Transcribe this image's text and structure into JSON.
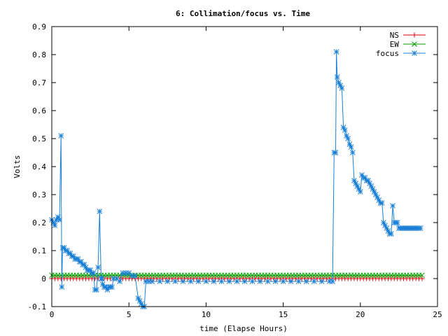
{
  "chart_data": {
    "type": "line",
    "title": "6: Collimation/focus vs. Time",
    "xlabel": "time (Elapse Hours)",
    "ylabel": "Volts",
    "xlim": [
      0,
      25
    ],
    "ylim": [
      -0.1,
      0.9
    ],
    "x_ticks": [
      0,
      5,
      10,
      15,
      20,
      25
    ],
    "y_ticks": [
      -0.1,
      0,
      0.1,
      0.2,
      0.3,
      0.4,
      0.5,
      0.6,
      0.7,
      0.8,
      0.9
    ],
    "x_tick_labels": [
      "0",
      "5",
      "10",
      "15",
      "20",
      "25"
    ],
    "y_tick_labels": [
      "-0.1",
      "0",
      "0.1",
      "0.2",
      "0.3",
      "0.4",
      "0.5",
      "0.6",
      "0.7",
      "0.8",
      "0.9"
    ],
    "grid": false,
    "legend_position": "top-right",
    "series": [
      {
        "name": "NS",
        "color": "#e00000",
        "marker": "plus",
        "x_range": [
          0,
          24
        ],
        "step": 0.2,
        "value": 0.0
      },
      {
        "name": "EW",
        "color": "#00a000",
        "marker": "cross",
        "x_range": [
          0,
          24
        ],
        "step": 0.2,
        "value": 0.012
      },
      {
        "name": "focus",
        "color": "#1a7fd6",
        "marker": "star",
        "x": [
          0.0,
          0.1,
          0.2,
          0.3,
          0.4,
          0.5,
          0.6,
          0.65,
          0.7,
          0.8,
          0.9,
          1.0,
          1.1,
          1.2,
          1.3,
          1.4,
          1.5,
          1.6,
          1.7,
          1.8,
          1.9,
          2.0,
          2.1,
          2.2,
          2.3,
          2.4,
          2.5,
          2.6,
          2.7,
          2.8,
          2.9,
          3.0,
          3.1,
          3.2,
          3.25,
          3.3,
          3.4,
          3.5,
          3.6,
          3.7,
          3.8,
          3.9,
          4.0,
          4.2,
          4.4,
          4.6,
          4.8,
          5.0,
          5.2,
          5.4,
          5.6,
          5.7,
          5.8,
          5.9,
          6.0,
          6.1,
          6.3,
          6.5,
          7.0,
          7.5,
          8.0,
          8.5,
          9.0,
          9.5,
          10.0,
          10.5,
          11.0,
          11.5,
          12.0,
          12.5,
          13.0,
          13.5,
          14.0,
          14.5,
          15.0,
          15.5,
          16.0,
          16.5,
          17.0,
          17.5,
          18.0,
          18.2,
          18.3,
          18.4,
          18.45,
          18.5,
          18.6,
          18.7,
          18.8,
          18.9,
          19.0,
          19.1,
          19.2,
          19.3,
          19.4,
          19.5,
          19.6,
          19.7,
          19.8,
          19.9,
          20.0,
          20.1,
          20.2,
          20.3,
          20.4,
          20.5,
          20.6,
          20.7,
          20.8,
          20.9,
          21.0,
          21.1,
          21.2,
          21.3,
          21.4,
          21.5,
          21.6,
          21.7,
          21.8,
          21.9,
          22.0,
          22.1,
          22.2,
          22.3,
          22.4,
          22.5,
          22.6,
          22.7,
          22.8,
          22.9,
          23.0,
          23.1,
          23.2,
          23.3,
          23.4,
          23.5,
          23.6,
          23.7,
          23.8,
          23.9
        ],
        "y": [
          0.21,
          0.2,
          0.19,
          0.21,
          0.22,
          0.21,
          0.51,
          -0.03,
          0.11,
          0.11,
          0.1,
          0.1,
          0.09,
          0.09,
          0.08,
          0.08,
          0.07,
          0.07,
          0.07,
          0.06,
          0.06,
          0.05,
          0.05,
          0.04,
          0.03,
          0.03,
          0.03,
          0.02,
          0.02,
          -0.04,
          -0.04,
          0.04,
          0.24,
          0.0,
          0.0,
          -0.02,
          -0.03,
          -0.03,
          -0.04,
          -0.03,
          -0.03,
          -0.03,
          0.0,
          0.0,
          -0.01,
          0.02,
          0.02,
          0.02,
          0.01,
          0.01,
          -0.07,
          -0.08,
          -0.09,
          -0.1,
          -0.1,
          -0.01,
          -0.01,
          -0.01,
          -0.01,
          -0.01,
          -0.01,
          -0.01,
          -0.01,
          -0.01,
          -0.01,
          -0.01,
          -0.01,
          -0.01,
          -0.01,
          -0.01,
          -0.01,
          -0.01,
          -0.01,
          -0.01,
          -0.01,
          -0.01,
          -0.01,
          -0.01,
          -0.01,
          -0.01,
          -0.01,
          -0.01,
          0.45,
          0.45,
          0.81,
          0.72,
          0.7,
          0.69,
          0.68,
          0.54,
          0.53,
          0.51,
          0.5,
          0.48,
          0.47,
          0.45,
          0.35,
          0.34,
          0.33,
          0.32,
          0.31,
          0.37,
          0.36,
          0.36,
          0.35,
          0.35,
          0.34,
          0.33,
          0.32,
          0.31,
          0.3,
          0.29,
          0.28,
          0.27,
          0.27,
          0.2,
          0.19,
          0.18,
          0.17,
          0.16,
          0.16,
          0.26,
          0.2,
          0.2,
          0.2,
          0.18,
          0.18,
          0.18,
          0.18,
          0.18,
          0.18,
          0.18,
          0.18,
          0.18,
          0.18,
          0.18,
          0.18,
          0.18,
          0.18,
          0.18
        ]
      }
    ]
  }
}
